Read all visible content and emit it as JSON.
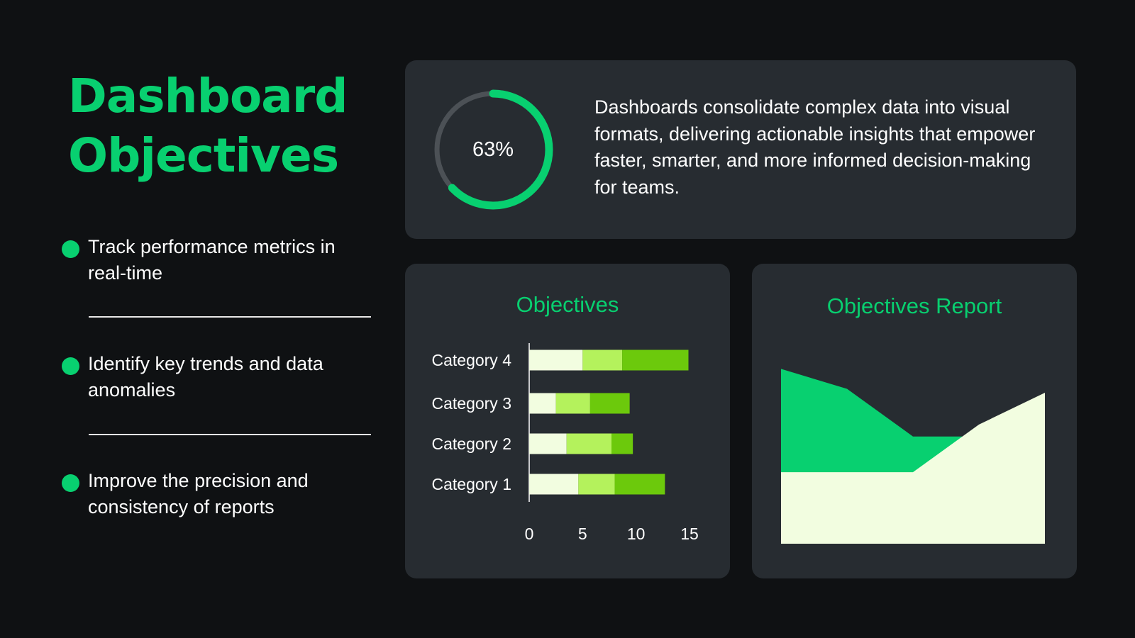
{
  "title": {
    "line1": "Dashboard",
    "line2": "Objectives"
  },
  "bullets": [
    {
      "text": "Track performance metrics in real-time"
    },
    {
      "text": "Identify key trends and data anomalies"
    },
    {
      "text": "Improve the precision and consistency of reports"
    }
  ],
  "summary": {
    "percent_label": "63%",
    "progress": 0.63,
    "description": "Dashboards consolidate complex data into visual formats, delivering actionable insights that empower faster, smarter, and more informed decision-making for teams."
  },
  "colors": {
    "accent": "#08d070",
    "track": "#4c5156",
    "segment1": "#f2fde0",
    "segment2": "#b4f25c",
    "segment3": "#6cc90c",
    "area_back": "#08d070",
    "area_front": "#f2fde0"
  },
  "chart_data": [
    {
      "type": "bar",
      "orientation": "horizontal",
      "stacked": true,
      "title": "Objectives",
      "categories": [
        "Category 1",
        "Category 2",
        "Category 3",
        "Category 4"
      ],
      "series": [
        {
          "values": [
            4.6,
            3.5,
            2.5,
            5.0
          ]
        },
        {
          "values": [
            3.4,
            4.2,
            3.2,
            3.7
          ]
        },
        {
          "values": [
            4.7,
            2.0,
            3.7,
            6.2
          ]
        }
      ],
      "xlim": [
        0,
        15
      ],
      "xticks": [
        "0",
        "5",
        "10",
        "15"
      ],
      "grid": false,
      "legend": "none"
    },
    {
      "type": "area",
      "title": "Objectives Report",
      "x": [
        1,
        2,
        3,
        4,
        5
      ],
      "series": [
        {
          "values": [
            44,
            39,
            27,
            27,
            34
          ]
        },
        {
          "values": [
            18,
            18,
            18,
            30,
            38
          ]
        }
      ],
      "ylim": [
        0,
        48
      ],
      "axes": "hidden",
      "grid": false,
      "legend": "none"
    }
  ]
}
